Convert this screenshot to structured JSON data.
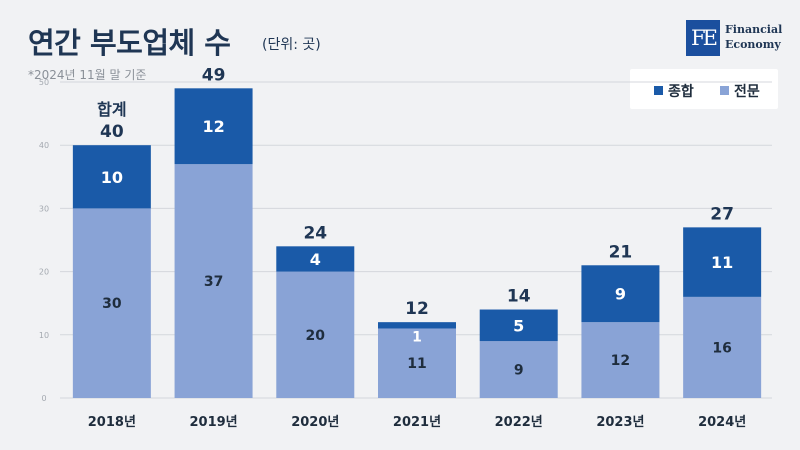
{
  "header": {
    "title": "연간 부도업체 수",
    "unit": "(단위: 곳)",
    "note": "*2024년 11월 말 기준"
  },
  "logo": {
    "mark": "FE",
    "line1": "Financial",
    "line2": "Economy"
  },
  "colors": {
    "general": "#1a5aa8",
    "specialty": "#89a3d6",
    "label_dark": "#1f3654"
  },
  "chart_data": {
    "type": "bar",
    "stacked": true,
    "categories": [
      "2018년",
      "2019년",
      "2020년",
      "2021년",
      "2022년",
      "2023년",
      "2024년"
    ],
    "series": [
      {
        "name": "전문",
        "values": [
          30,
          37,
          20,
          11,
          9,
          12,
          16
        ]
      },
      {
        "name": "종합",
        "values": [
          10,
          12,
          4,
          1,
          5,
          9,
          11
        ]
      }
    ],
    "totals": [
      40,
      49,
      24,
      12,
      14,
      21,
      27
    ],
    "total_label": "합계",
    "ylim": [
      0,
      50
    ],
    "yticks": [
      0,
      10,
      20,
      30,
      40,
      50
    ],
    "grid": true,
    "legend_position": "top-right",
    "title": "연간 부도업체 수",
    "xlabel": "",
    "ylabel": ""
  }
}
